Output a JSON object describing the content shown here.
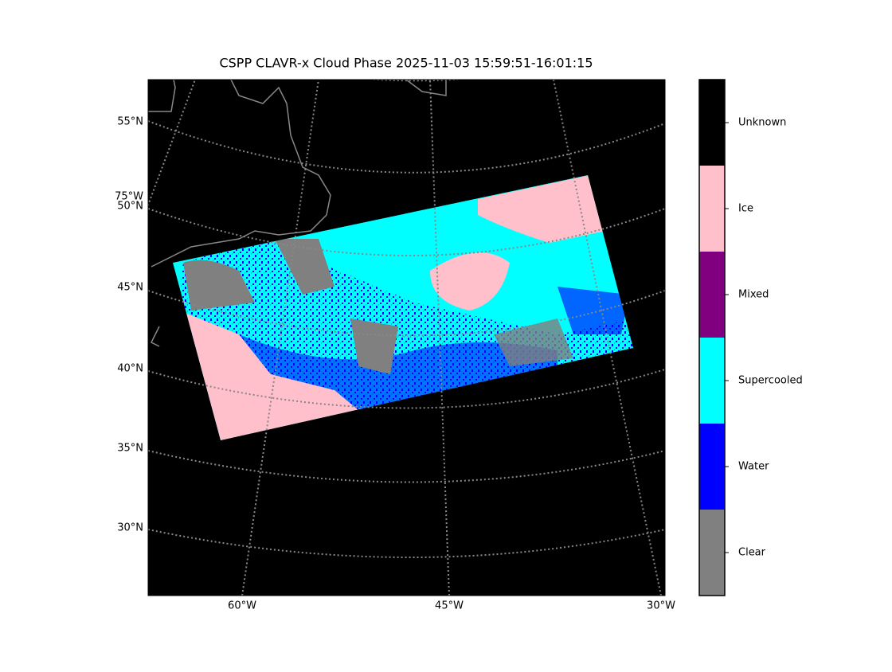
{
  "title": "CSPP CLAVR-x Cloud Phase 2025-11-03 15:59:51-16:01:15",
  "latitude_labels": [
    "55°N",
    "50°N",
    "45°N",
    "40°N",
    "35°N",
    "30°N"
  ],
  "longitude_label_left": "75°W",
  "longitude_labels_bottom": [
    "60°W",
    "45°W",
    "30°W"
  ],
  "colorbar": {
    "classes": [
      {
        "label": "Clear",
        "color": "#808080"
      },
      {
        "label": "Water",
        "color": "#0000ff"
      },
      {
        "label": "Supercooled",
        "color": "#00ffff"
      },
      {
        "label": "Mixed",
        "color": "#800080"
      },
      {
        "label": "Ice",
        "color": "#ffc0cb"
      },
      {
        "label": "Unknown",
        "color": "#000000"
      }
    ]
  }
}
